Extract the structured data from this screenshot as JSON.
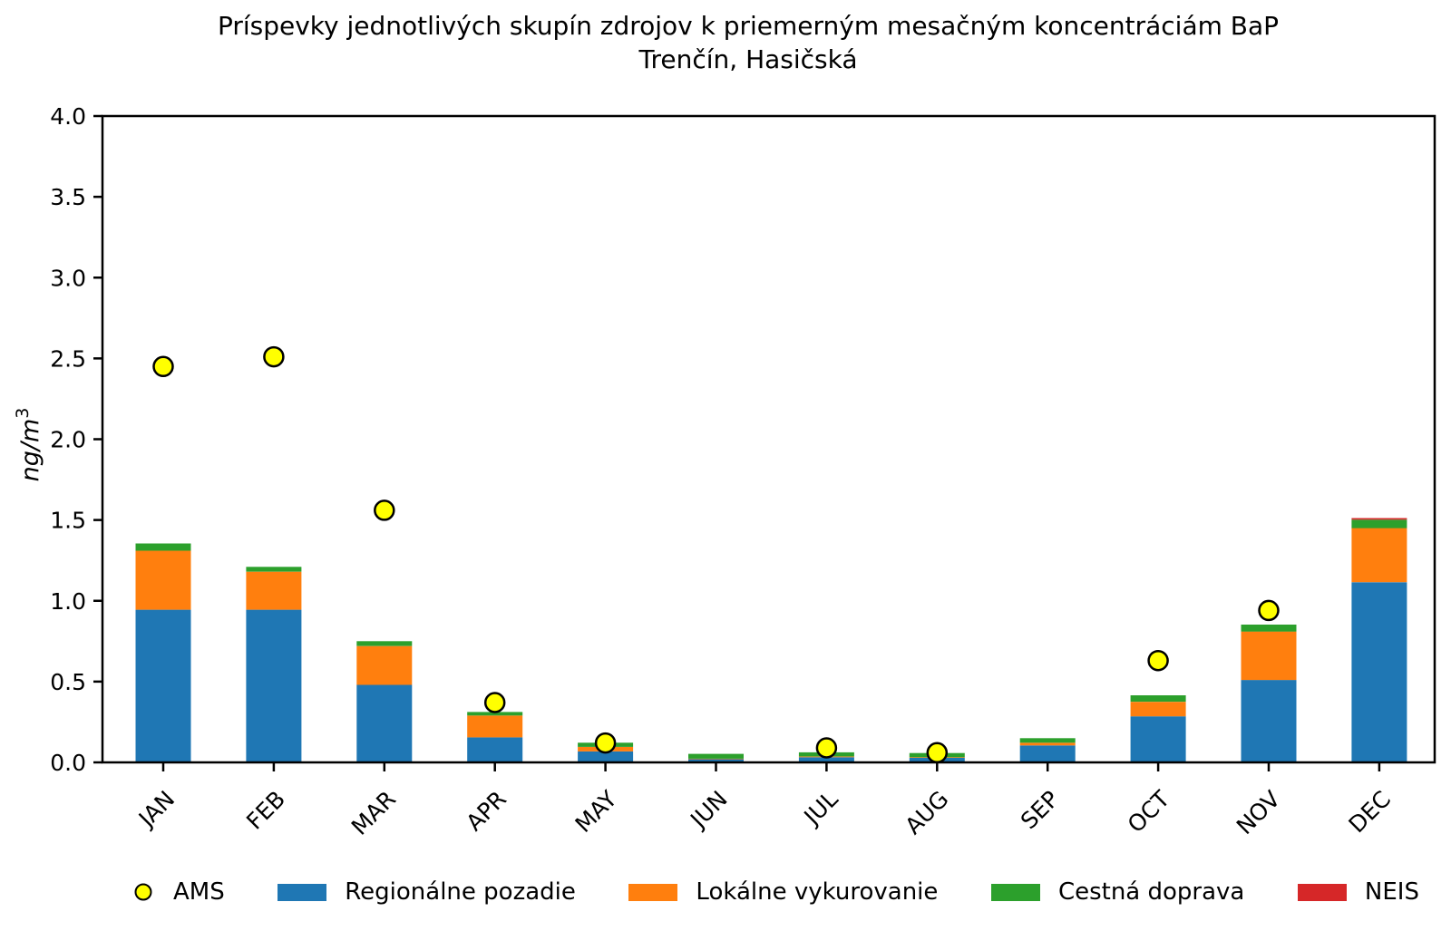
{
  "chart_data": {
    "type": "bar",
    "stacked": true,
    "title": "Príspevky jednotlivých skupín zdrojov k priemerným mesačným koncentráciám BaP",
    "subtitle": "Trenčín, Hasičská",
    "ylabel": {
      "base": "ng/m",
      "sup": "3"
    },
    "ylim": [
      0,
      4.0
    ],
    "yticks": [
      "0.0",
      "0.5",
      "1.0",
      "1.5",
      "2.0",
      "2.5",
      "3.0",
      "3.5",
      "4.0"
    ],
    "grid": false,
    "legend_position": "bottom",
    "categories": [
      "JAN",
      "FEB",
      "MAR",
      "APR",
      "MAY",
      "JUN",
      "JUL",
      "AUG",
      "SEP",
      "OCT",
      "NOV",
      "DEC"
    ],
    "series": [
      {
        "name": "Regionálne pozadie",
        "color": "#1f77b4",
        "values": [
          0.945,
          0.945,
          0.48,
          0.155,
          0.068,
          0.02,
          0.032,
          0.028,
          0.105,
          0.285,
          0.51,
          1.115
        ]
      },
      {
        "name": "Lokálne vykurovanie",
        "color": "#ff7f0e",
        "values": [
          0.365,
          0.235,
          0.24,
          0.135,
          0.028,
          0.003,
          0.004,
          0.004,
          0.017,
          0.09,
          0.3,
          0.335
        ]
      },
      {
        "name": "Cestná doprava",
        "color": "#2ca02c",
        "values": [
          0.045,
          0.03,
          0.03,
          0.022,
          0.026,
          0.03,
          0.026,
          0.026,
          0.028,
          0.04,
          0.043,
          0.052
        ]
      },
      {
        "name": "NEIS",
        "color": "#d62728",
        "values": [
          0,
          0,
          0,
          0,
          0,
          0,
          0,
          0,
          0,
          0,
          0,
          0.01
        ]
      }
    ],
    "scatter": {
      "name": "AMS",
      "fill": "#ffff00",
      "edge": "#000000",
      "values": [
        2.45,
        2.51,
        1.56,
        0.37,
        0.12,
        null,
        0.09,
        0.06,
        null,
        0.63,
        0.94,
        null
      ]
    }
  },
  "legend": {
    "items": [
      {
        "label": "AMS",
        "marker": "circle",
        "fill": "#ffff00",
        "edge": "#000000"
      },
      {
        "label": "Regionálne pozadie",
        "marker": "rect",
        "fill": "#1f77b4"
      },
      {
        "label": "Lokálne vykurovanie",
        "marker": "rect",
        "fill": "#ff7f0e"
      },
      {
        "label": "Cestná doprava",
        "marker": "rect",
        "fill": "#2ca02c"
      },
      {
        "label": "NEIS",
        "marker": "rect",
        "fill": "#d62728"
      }
    ]
  }
}
